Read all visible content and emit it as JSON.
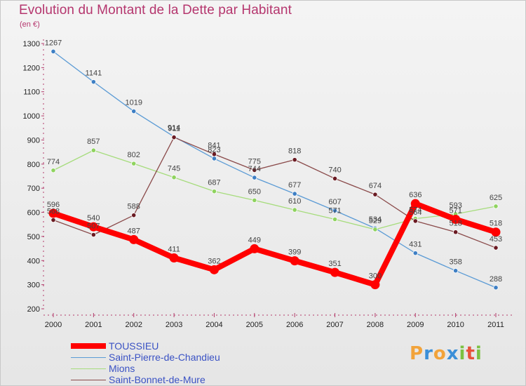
{
  "chart_data": {
    "type": "line",
    "title": "Evolution du Montant de la Dette par Habitant",
    "unit_label": "(en €)",
    "xlabel": "",
    "ylabel": "",
    "ylim": [
      200,
      1300
    ],
    "yticks": [
      200,
      300,
      400,
      500,
      600,
      700,
      800,
      900,
      1000,
      1100,
      1200,
      1300
    ],
    "categories": [
      "2000",
      "2001",
      "2002",
      "2003",
      "2004",
      "2005",
      "2006",
      "2007",
      "2008",
      "2009",
      "2010",
      "2011"
    ],
    "series": [
      {
        "name": "Saint-Pierre-de-Chandieu",
        "color": "#5b9bd5",
        "marker": "#3e7fc4",
        "values": [
          1267,
          1141,
          1019,
          914,
          823,
          744,
          677,
          607,
          534,
          431,
          358,
          288
        ]
      },
      {
        "name": "Mions",
        "color": "#a6dc7c",
        "marker": "#8fd35f",
        "values": [
          774,
          857,
          802,
          745,
          687,
          650,
          610,
          571,
          529,
          574,
          593,
          625
        ]
      },
      {
        "name": "Saint-Bonnet-de-Mure",
        "color": "#8a4a4a",
        "marker": "#6a1a22",
        "values": [
          568,
          507,
          588,
          911,
          841,
          775,
          818,
          740,
          674,
          564,
          518,
          453
        ]
      },
      {
        "name": "TOUSSIEU",
        "color": "#ff0000",
        "marker": "#ff0000",
        "values": [
          596,
          540,
          487,
          411,
          362,
          449,
          399,
          351,
          300,
          636,
          571,
          518
        ],
        "labels": [
          "596",
          "540",
          "487",
          "411",
          "362",
          "449",
          "399",
          "351",
          "300",
          "636",
          "571",
          "518"
        ]
      }
    ],
    "legend": [
      "TOUSSIEU",
      "Saint-Pierre-de-Chandieu",
      "Mions",
      "Saint-Bonnet-de-Mure"
    ],
    "legend_position": "bottom-left",
    "grid": false
  },
  "brand": {
    "letters": [
      "P",
      "r",
      "o",
      "x",
      "i",
      "t",
      "i"
    ],
    "colors": [
      "#f2a33a",
      "#3b8fd8",
      "#f2a33a",
      "#3b8fd8",
      "#7cc142",
      "#e8523a",
      "#7cc142"
    ]
  }
}
